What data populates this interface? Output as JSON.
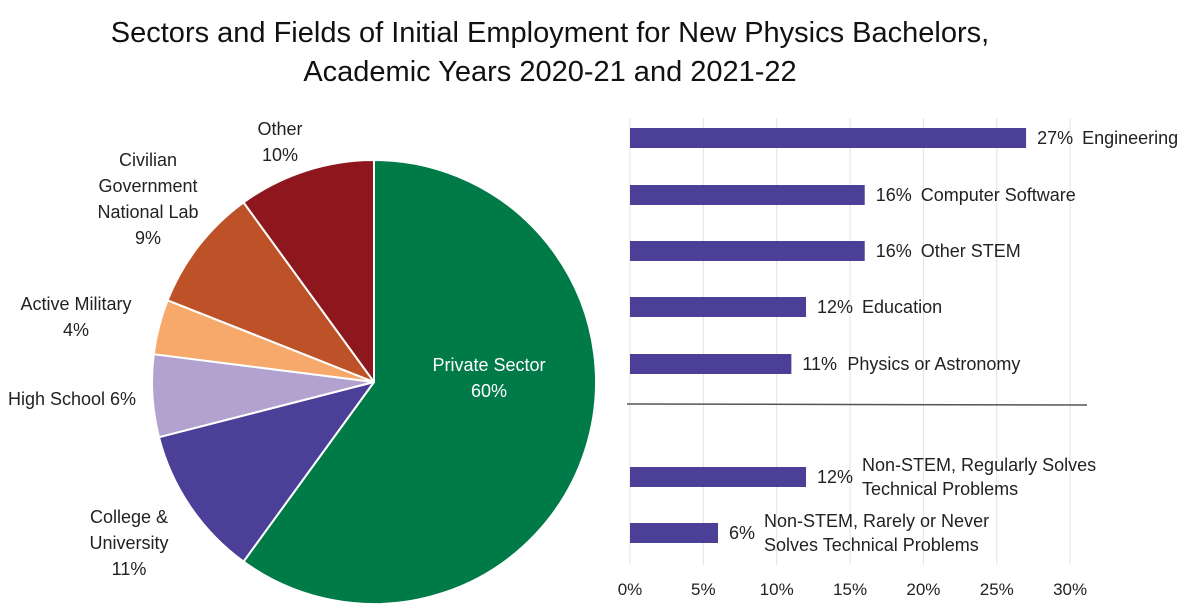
{
  "title": {
    "line1": "Sectors and Fields of Initial Employment for New Physics Bachelors,",
    "line2": "Academic Years 2020-21 and 2021-22"
  },
  "chart_data": [
    {
      "type": "pie",
      "slices": [
        {
          "label_lines": [
            "Private Sector",
            "60%"
          ],
          "value": 60,
          "color": "#007a47"
        },
        {
          "label_lines": [
            "College &",
            "University",
            "11%"
          ],
          "value": 11,
          "color": "#4b3f98"
        },
        {
          "label_lines": [
            "High School 6%"
          ],
          "value": 6,
          "color": "#b3a2d0"
        },
        {
          "label_lines": [
            "Active Military",
            "4%"
          ],
          "value": 4,
          "color": "#f6a96b"
        },
        {
          "label_lines": [
            "Civilian",
            "Government",
            "National Lab",
            "9%"
          ],
          "value": 9,
          "color": "#bd5127"
        },
        {
          "label_lines": [
            "Other",
            "10%"
          ],
          "value": 10,
          "color": "#8d171d"
        }
      ]
    },
    {
      "type": "bar",
      "orientation": "horizontal",
      "bar_color": "#4b3f98",
      "xlim": [
        0,
        31
      ],
      "xticks": [
        0,
        5,
        10,
        15,
        20,
        25,
        30
      ],
      "tick_suffix": "%",
      "grid": true,
      "bars": [
        {
          "value": 27,
          "value_label": "27%",
          "label_lines": [
            "Engineering"
          ],
          "group": "stem"
        },
        {
          "value": 16,
          "value_label": "16%",
          "label_lines": [
            "Computer Software"
          ],
          "group": "stem"
        },
        {
          "value": 16,
          "value_label": "16%",
          "label_lines": [
            "Other STEM"
          ],
          "group": "stem"
        },
        {
          "value": 12,
          "value_label": "12%",
          "label_lines": [
            "Education"
          ],
          "group": "stem"
        },
        {
          "value": 11,
          "value_label": "11%",
          "label_lines": [
            "Physics or Astronomy"
          ],
          "group": "stem"
        },
        {
          "value": 12,
          "value_label": "12%",
          "label_lines": [
            "Non-STEM, Regularly Solves",
            "Technical Problems"
          ],
          "group": "non-stem"
        },
        {
          "value": 6,
          "value_label": "6%",
          "label_lines": [
            "Non-STEM, Rarely or Never",
            "Solves Technical Problems"
          ],
          "group": "non-stem"
        }
      ]
    }
  ]
}
